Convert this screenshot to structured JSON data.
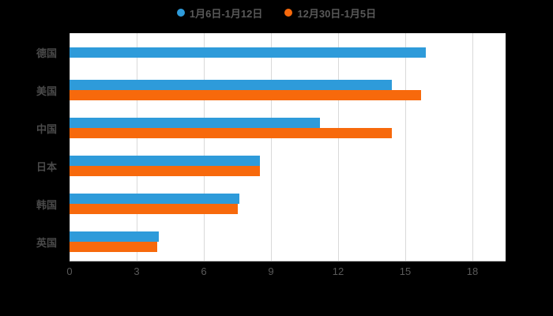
{
  "chart_data": {
    "type": "bar",
    "orientation": "horizontal",
    "title": "",
    "xlabel": "",
    "ylabel": "",
    "categories": [
      "德国",
      "美国",
      "中国",
      "日本",
      "韩国",
      "英国"
    ],
    "series": [
      {
        "name": "1月6日-1月12日",
        "color": "#2e9bda",
        "values": [
          15.9,
          14.4,
          11.2,
          8.5,
          7.6,
          4.0
        ]
      },
      {
        "name": "12月30日-1月5日",
        "color": "#f7690c",
        "values": [
          null,
          15.7,
          14.4,
          8.5,
          7.5,
          3.9
        ]
      }
    ],
    "x_axis": {
      "min": 0,
      "max": 18,
      "step": 3,
      "ticks": [
        0,
        3,
        6,
        9,
        12,
        15,
        18
      ]
    },
    "grid": true,
    "legend_position": "top",
    "plot_background": "#ffffff",
    "page_background": "#000000"
  },
  "colors": {
    "series1": "#2e9bda",
    "series2": "#f7690c",
    "gridline": "#d9d9d9",
    "axis_line": "#bfbfbf",
    "tick_text": "#595959",
    "category_text": "#4a4a4a"
  }
}
